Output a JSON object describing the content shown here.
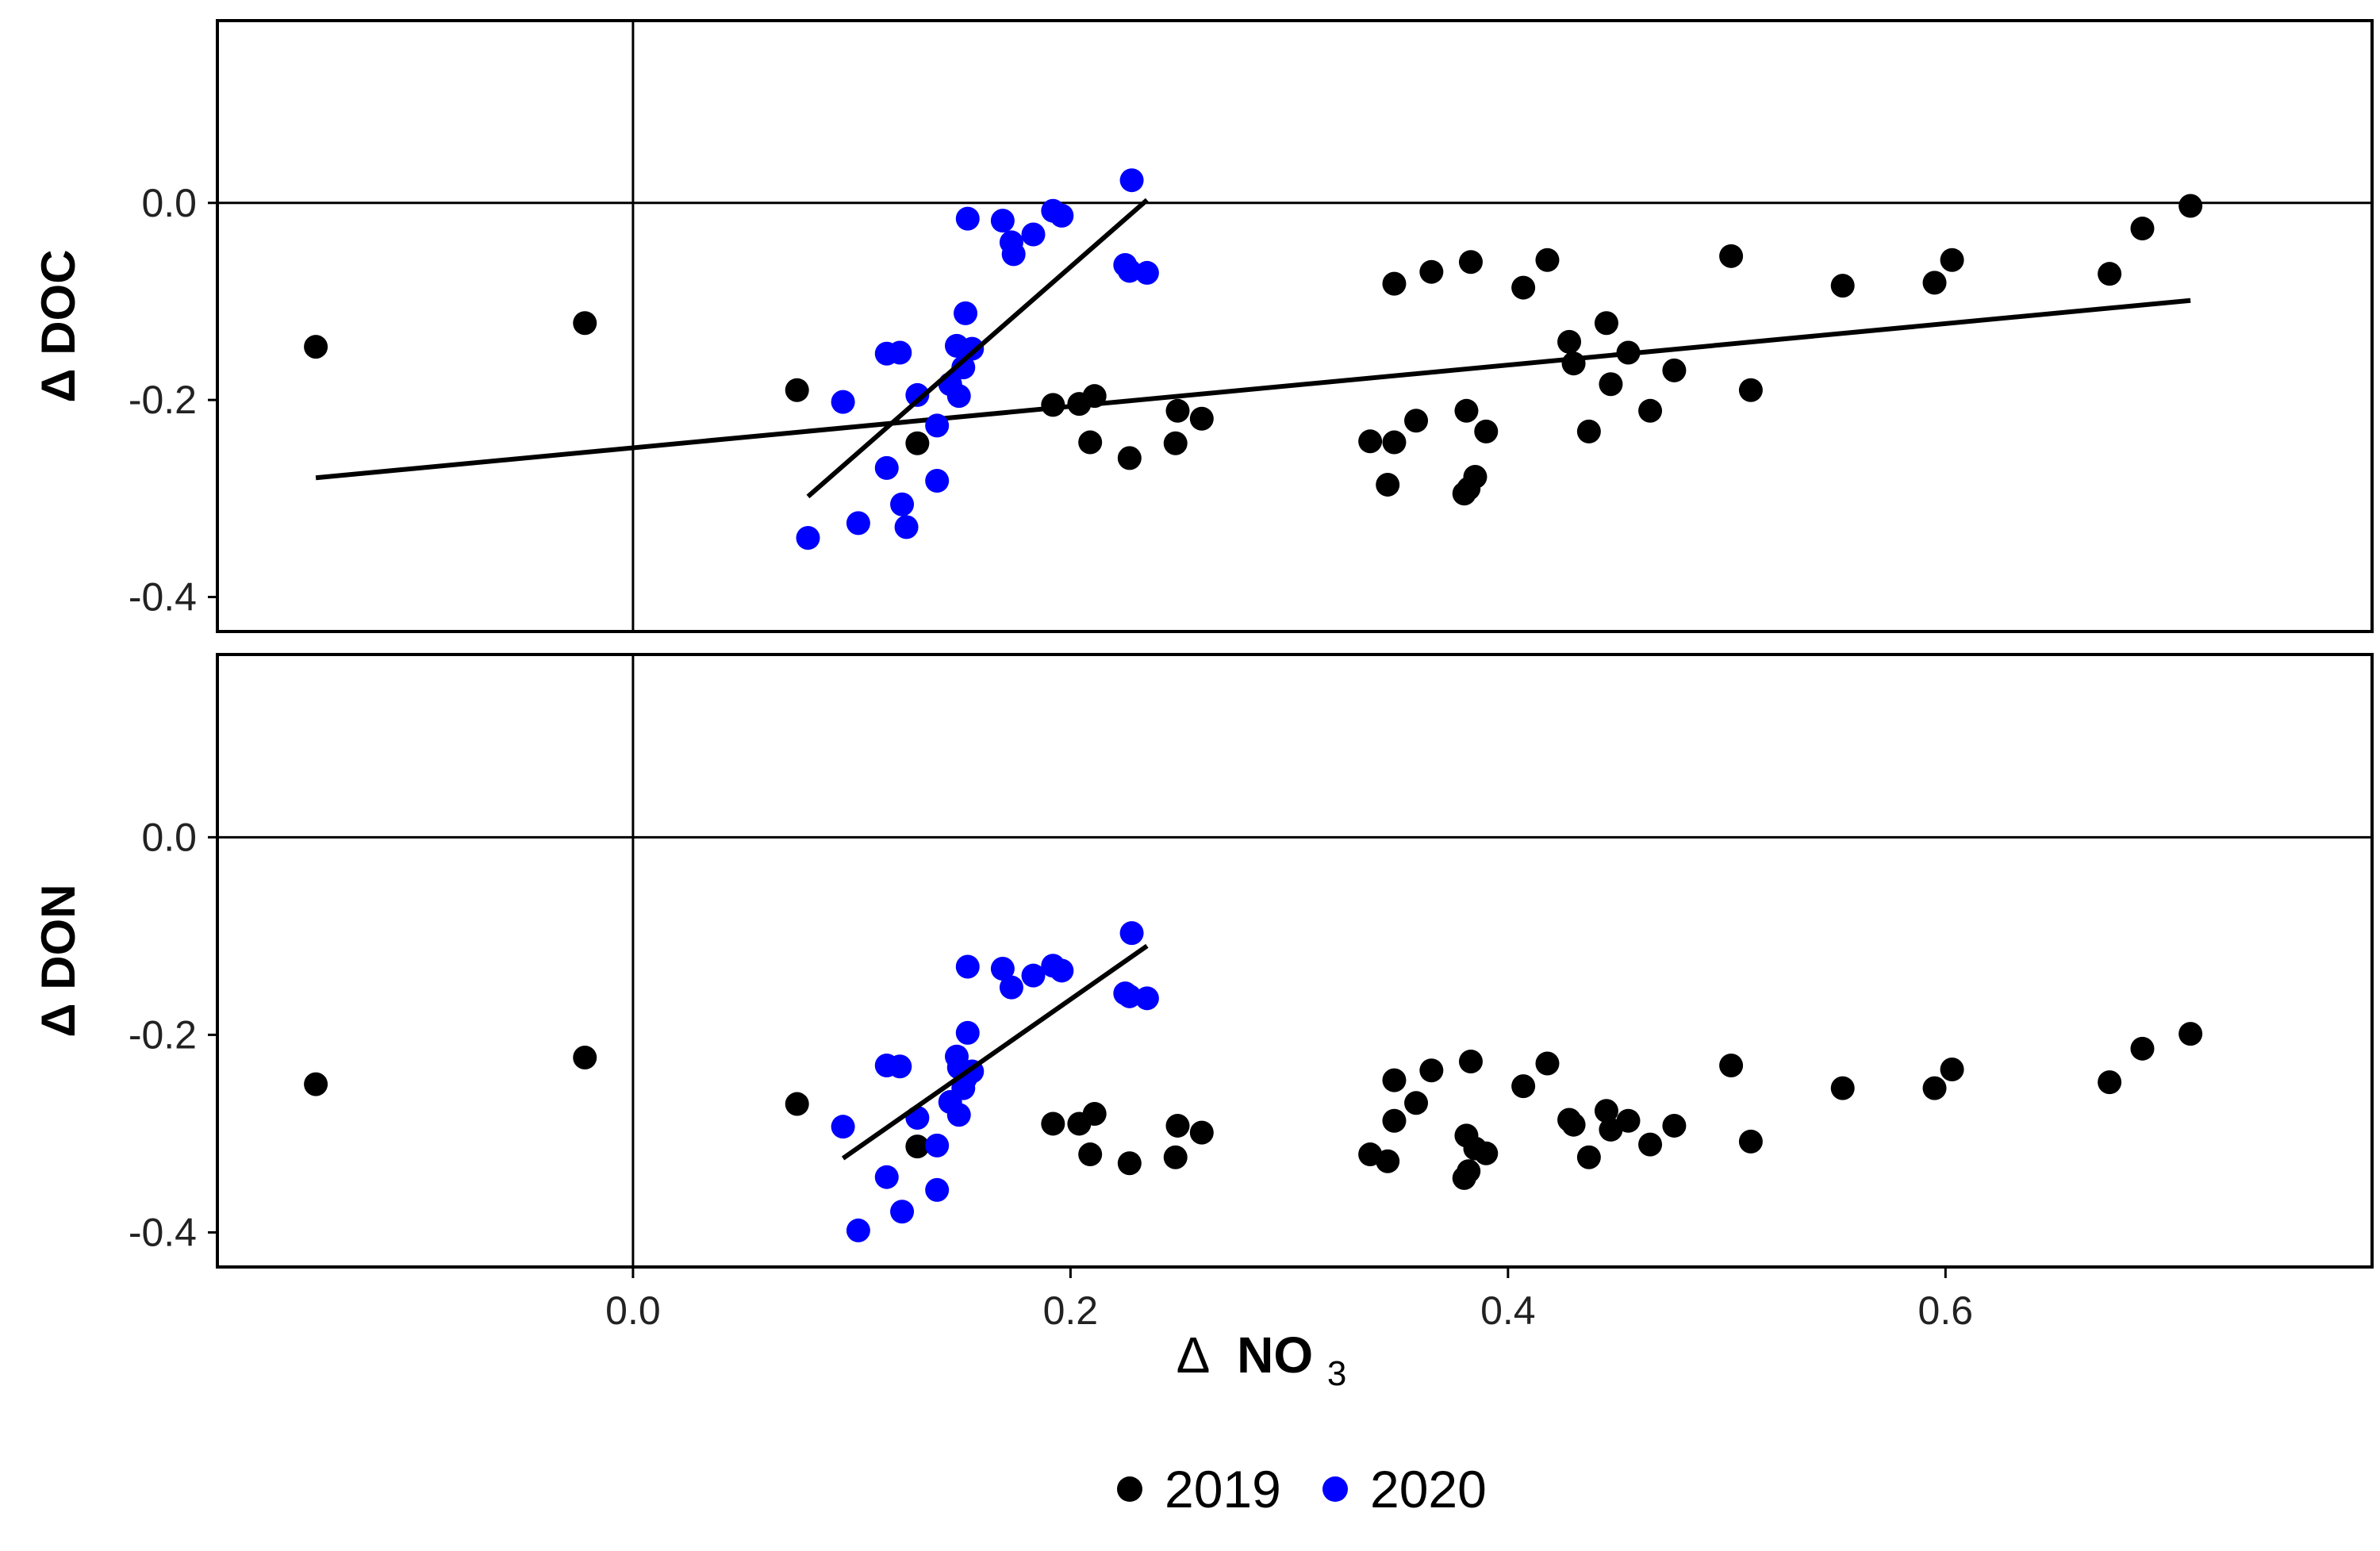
{
  "chart_data": {
    "type": "scatter",
    "layout": "two panels stacked vertically, shared x axis",
    "xlabel_delta": "Δ",
    "xlabel_main": "NO",
    "xlabel_sub": "3",
    "x_ticks": [
      "0.0",
      "0.2",
      "0.4",
      "0.6"
    ],
    "x_tick_values": [
      0.0,
      0.2,
      0.4,
      0.6
    ],
    "xlim": [
      -0.19,
      0.795
    ],
    "ylim": [
      -0.435,
      0.185
    ],
    "y_ticks": [
      "0.0",
      "-0.2",
      "-0.4"
    ],
    "y_tick_values": [
      0.0,
      -0.2,
      -0.4
    ],
    "reference_lines": {
      "x": 0.0,
      "y": 0.0
    },
    "grid": false,
    "legend": {
      "position": "bottom",
      "entries": [
        "2019",
        "2020"
      ]
    },
    "series_colors": {
      "2019": "#000000",
      "2020": "#0000ff"
    },
    "panels": [
      {
        "ylabel": "Δ DOC",
        "series": [
          {
            "name": "2019",
            "points": [
              [
                -0.145,
                -0.146
              ],
              [
                -0.022,
                -0.122
              ],
              [
                0.075,
                -0.19
              ],
              [
                0.13,
                -0.244
              ],
              [
                0.192,
                -0.205
              ],
              [
                0.204,
                -0.204
              ],
              [
                0.209,
                -0.243
              ],
              [
                0.211,
                -0.196
              ],
              [
                0.227,
                -0.259
              ],
              [
                0.248,
                -0.244
              ],
              [
                0.249,
                -0.211
              ],
              [
                0.26,
                -0.219
              ],
              [
                0.337,
                -0.242
              ],
              [
                0.345,
                -0.286
              ],
              [
                0.348,
                -0.243
              ],
              [
                0.348,
                -0.082
              ],
              [
                0.358,
                -0.221
              ],
              [
                0.365,
                -0.07
              ],
              [
                0.38,
                -0.295
              ],
              [
                0.381,
                -0.211
              ],
              [
                0.382,
                -0.29
              ],
              [
                0.383,
                -0.06
              ],
              [
                0.385,
                -0.278
              ],
              [
                0.39,
                -0.232
              ],
              [
                0.407,
                -0.086
              ],
              [
                0.418,
                -0.058
              ],
              [
                0.428,
                -0.141
              ],
              [
                0.43,
                -0.163
              ],
              [
                0.437,
                -0.232
              ],
              [
                0.445,
                -0.122
              ],
              [
                0.447,
                -0.184
              ],
              [
                0.455,
                -0.152
              ],
              [
                0.465,
                -0.211
              ],
              [
                0.476,
                -0.17
              ],
              [
                0.502,
                -0.054
              ],
              [
                0.511,
                -0.19
              ],
              [
                0.553,
                -0.084
              ],
              [
                0.595,
                -0.081
              ],
              [
                0.603,
                -0.058
              ],
              [
                0.675,
                -0.072
              ],
              [
                0.69,
                -0.026
              ],
              [
                0.712,
                -0.003
              ]
            ],
            "fit": {
              "x": [
                -0.145,
                0.712
              ],
              "y": [
                -0.279,
                -0.099
              ]
            }
          },
          {
            "name": "2020",
            "points": [
              [
                0.08,
                -0.34
              ],
              [
                0.096,
                -0.202
              ],
              [
                0.103,
                -0.325
              ],
              [
                0.116,
                -0.153
              ],
              [
                0.116,
                -0.269
              ],
              [
                0.122,
                -0.152
              ],
              [
                0.123,
                -0.306
              ],
              [
                0.125,
                -0.329
              ],
              [
                0.13,
                -0.195
              ],
              [
                0.139,
                -0.226
              ],
              [
                0.139,
                -0.282
              ],
              [
                0.145,
                -0.184
              ],
              [
                0.148,
                -0.145
              ],
              [
                0.149,
                -0.196
              ],
              [
                0.151,
                -0.167
              ],
              [
                0.152,
                -0.112
              ],
              [
                0.153,
                -0.016
              ],
              [
                0.155,
                -0.148
              ],
              [
                0.169,
                -0.018
              ],
              [
                0.173,
                -0.04
              ],
              [
                0.174,
                -0.052
              ],
              [
                0.183,
                -0.032
              ],
              [
                0.192,
                -0.008
              ],
              [
                0.196,
                -0.013
              ],
              [
                0.225,
                -0.063
              ],
              [
                0.227,
                -0.069
              ],
              [
                0.228,
                0.023
              ],
              [
                0.235,
                -0.071
              ]
            ],
            "fit": {
              "x": [
                0.08,
                0.235
              ],
              "y": [
                -0.298,
                0.003
              ]
            }
          }
        ]
      },
      {
        "ylabel": "Δ DON",
        "series": [
          {
            "name": "2019",
            "points": [
              [
                -0.145,
                -0.25
              ],
              [
                -0.022,
                -0.223
              ],
              [
                0.075,
                -0.27
              ],
              [
                0.13,
                -0.313
              ],
              [
                0.192,
                -0.29
              ],
              [
                0.204,
                -0.29
              ],
              [
                0.209,
                -0.321
              ],
              [
                0.211,
                -0.28
              ],
              [
                0.227,
                -0.33
              ],
              [
                0.248,
                -0.324
              ],
              [
                0.249,
                -0.292
              ],
              [
                0.26,
                -0.299
              ],
              [
                0.337,
                -0.321
              ],
              [
                0.345,
                -0.328
              ],
              [
                0.348,
                -0.287
              ],
              [
                0.348,
                -0.246
              ],
              [
                0.358,
                -0.269
              ],
              [
                0.365,
                -0.236
              ],
              [
                0.38,
                -0.345
              ],
              [
                0.381,
                -0.302
              ],
              [
                0.382,
                -0.338
              ],
              [
                0.383,
                -0.227
              ],
              [
                0.385,
                -0.315
              ],
              [
                0.39,
                -0.32
              ],
              [
                0.407,
                -0.252
              ],
              [
                0.418,
                -0.229
              ],
              [
                0.428,
                -0.286
              ],
              [
                0.43,
                -0.291
              ],
              [
                0.437,
                -0.324
              ],
              [
                0.445,
                -0.277
              ],
              [
                0.447,
                -0.296
              ],
              [
                0.455,
                -0.287
              ],
              [
                0.465,
                -0.311
              ],
              [
                0.476,
                -0.292
              ],
              [
                0.502,
                -0.231
              ],
              [
                0.511,
                -0.308
              ],
              [
                0.553,
                -0.254
              ],
              [
                0.595,
                -0.254
              ],
              [
                0.603,
                -0.235
              ],
              [
                0.675,
                -0.248
              ],
              [
                0.69,
                -0.214
              ],
              [
                0.712,
                -0.199
              ]
            ]
          },
          {
            "name": "2020",
            "points": [
              [
                0.096,
                -0.293
              ],
              [
                0.103,
                -0.398
              ],
              [
                0.116,
                -0.231
              ],
              [
                0.116,
                -0.344
              ],
              [
                0.122,
                -0.232
              ],
              [
                0.123,
                -0.379
              ],
              [
                0.13,
                -0.284
              ],
              [
                0.139,
                -0.312
              ],
              [
                0.139,
                -0.357
              ],
              [
                0.145,
                -0.268
              ],
              [
                0.148,
                -0.222
              ],
              [
                0.149,
                -0.233
              ],
              [
                0.149,
                -0.281
              ],
              [
                0.151,
                -0.254
              ],
              [
                0.152,
                -0.244
              ],
              [
                0.153,
                -0.198
              ],
              [
                0.153,
                -0.131
              ],
              [
                0.155,
                -0.237
              ],
              [
                0.169,
                -0.133
              ],
              [
                0.173,
                -0.152
              ],
              [
                0.183,
                -0.14
              ],
              [
                0.192,
                -0.13
              ],
              [
                0.196,
                -0.135
              ],
              [
                0.225,
                -0.158
              ],
              [
                0.227,
                -0.161
              ],
              [
                0.228,
                -0.097
              ],
              [
                0.235,
                -0.163
              ]
            ],
            "fit": {
              "x": [
                0.096,
                0.235
              ],
              "y": [
                -0.325,
                -0.11
              ]
            }
          }
        ]
      }
    ]
  }
}
